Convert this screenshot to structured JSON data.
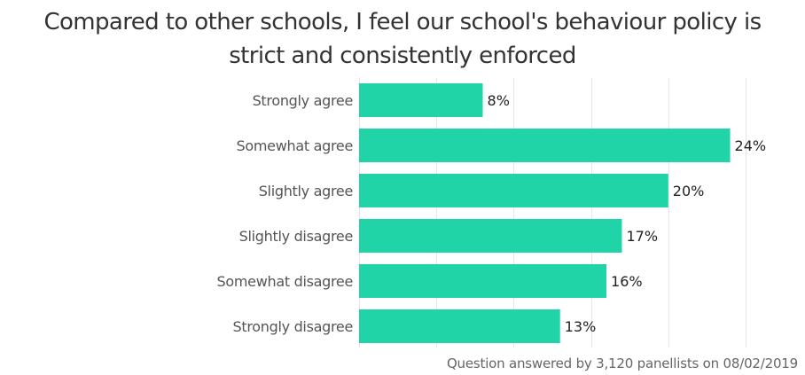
{
  "colors": {
    "bar": "#20d4a8",
    "grid": "#e6e6e6",
    "text": "#555555",
    "value_text": "#222222"
  },
  "footer": {
    "note": "Question answered by 3,120 panellists on 08/02/2019"
  },
  "chart_data": {
    "type": "bar",
    "orientation": "horizontal",
    "title_lines": [
      "Compared to other schools, I feel our school's behaviour policy is",
      "strict and consistently enforced"
    ],
    "categories": [
      "Strongly agree",
      "Somewhat agree",
      "Slightly agree",
      "Slightly disagree",
      "Somewhat disagree",
      "Strongly disagree"
    ],
    "values": [
      8,
      24,
      20,
      17,
      16,
      13
    ],
    "value_labels": [
      "8%",
      "24%",
      "20%",
      "17%",
      "16%",
      "13%"
    ],
    "unit": "%",
    "xlim": [
      0,
      25
    ],
    "grid": true,
    "xlabel": "",
    "ylabel": ""
  }
}
